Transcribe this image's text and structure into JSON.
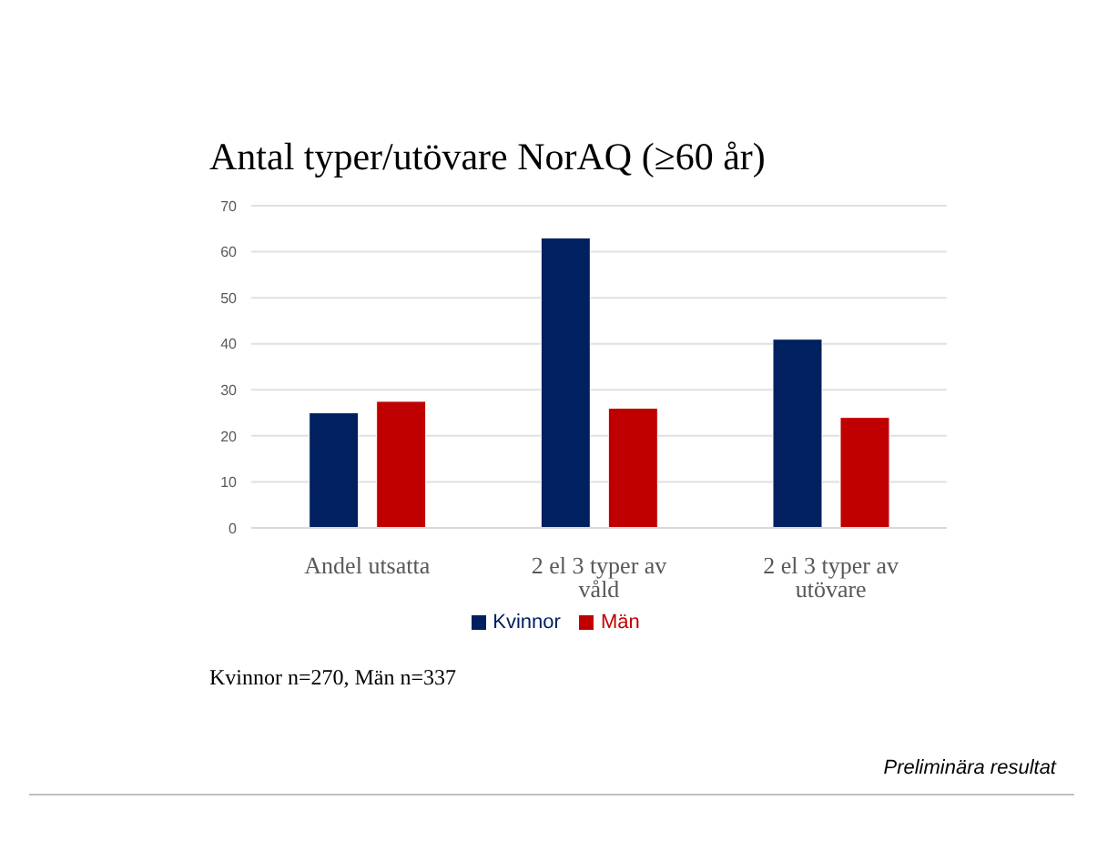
{
  "chart_data": {
    "type": "bar",
    "title": "Antal typer/utövare NorAQ (≥60 år)",
    "categories": [
      "Andel utsatta",
      "2 el 3 typer av våld",
      "2 el 3 typer av utövare"
    ],
    "series": [
      {
        "name": "Kvinnor",
        "color": "#002060",
        "values": [
          25,
          63,
          41
        ]
      },
      {
        "name": "Män",
        "color": "#c00000",
        "values": [
          27.5,
          26,
          24
        ]
      }
    ],
    "ylim": [
      0,
      70
    ],
    "yticks": [
      0,
      10,
      20,
      30,
      40,
      50,
      60,
      70
    ],
    "grid": "y",
    "legend": "bottom",
    "annotations": [
      "Kvinnor n=270, Män n=337",
      "Preliminära resultat"
    ]
  }
}
